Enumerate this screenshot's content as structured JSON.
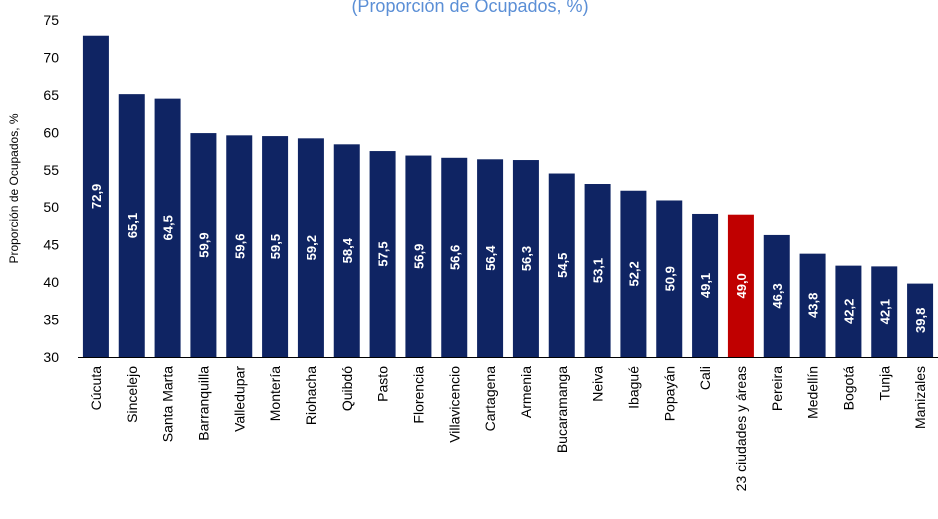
{
  "chart_data": {
    "type": "bar",
    "title": "(Proporción de Ocupados, %)",
    "ylabel": "Proporción de Ocupados, %",
    "xlabel": "",
    "ylim": [
      30,
      75
    ],
    "yticks": [
      "30",
      "35",
      "40",
      "45",
      "50",
      "55",
      "60",
      "65",
      "70",
      "75"
    ],
    "grid": false,
    "categories": [
      "Cúcuta",
      "Sincelejo",
      "Santa Marta",
      "Barranquilla",
      "Valledupar",
      "Montería",
      "Riohacha",
      "Quibdó",
      "Pasto",
      "Florencia",
      "Villavicencio",
      "Cartagena",
      "Armenia",
      "Bucaramanga",
      "Neiva",
      "Ibagué",
      "Popayán",
      "Cali",
      "23 ciudades y áreas",
      "Pereira",
      "Medellín",
      "Bogotá",
      "Tunja",
      "Manizales"
    ],
    "values": [
      72.9,
      65.1,
      64.5,
      59.9,
      59.6,
      59.5,
      59.2,
      58.4,
      57.5,
      56.9,
      56.6,
      56.4,
      56.3,
      54.5,
      53.1,
      52.2,
      50.9,
      49.1,
      49.0,
      46.3,
      43.8,
      42.2,
      42.1,
      39.8
    ],
    "data_labels": [
      "72,9",
      "65,1",
      "64,5",
      "59,9",
      "59,6",
      "59,5",
      "59,2",
      "58,4",
      "57,5",
      "56,9",
      "56,6",
      "56,4",
      "56,3",
      "54,5",
      "53,1",
      "52,2",
      "50,9",
      "49,1",
      "49,0",
      "46,3",
      "43,8",
      "42,2",
      "42,1",
      "39,8"
    ],
    "highlight_index": 18,
    "colors": {
      "bar": "#0f2463",
      "highlight": "#c00000",
      "title": "#5b8fd6",
      "axis": "#000000",
      "label": "#ffffff"
    }
  }
}
